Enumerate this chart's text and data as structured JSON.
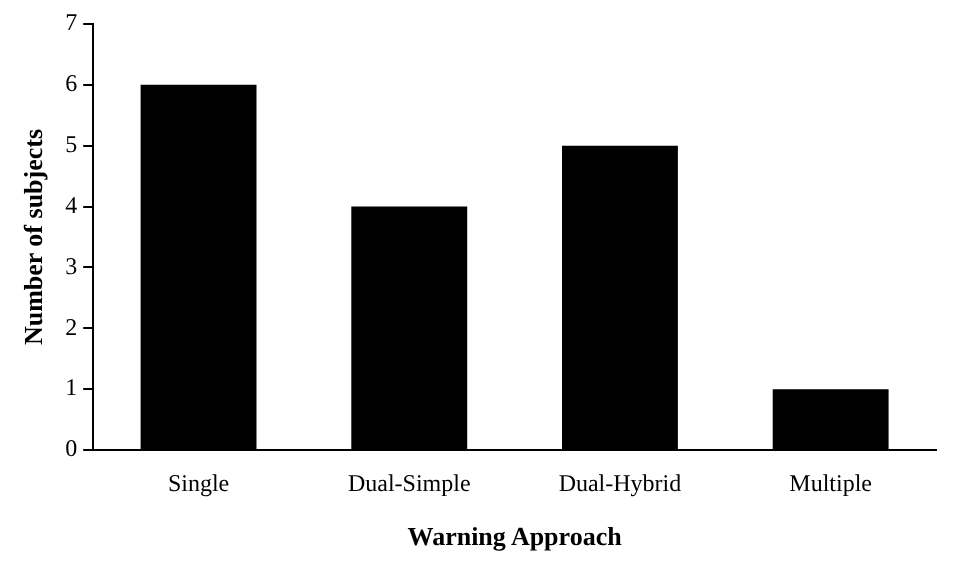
{
  "chart_data": {
    "type": "bar",
    "xlabel": "Warning Approach",
    "ylabel": "Number of subjects",
    "categories": [
      "Single",
      "Dual-Simple",
      "Dual-Hybrid",
      "Multiple"
    ],
    "values": [
      6,
      4,
      5,
      1
    ],
    "color": "#000000",
    "ylim": [
      0,
      7
    ],
    "yticks": [
      0,
      1,
      2,
      3,
      4,
      5,
      6,
      7
    ],
    "grid": false,
    "legend": false
  }
}
